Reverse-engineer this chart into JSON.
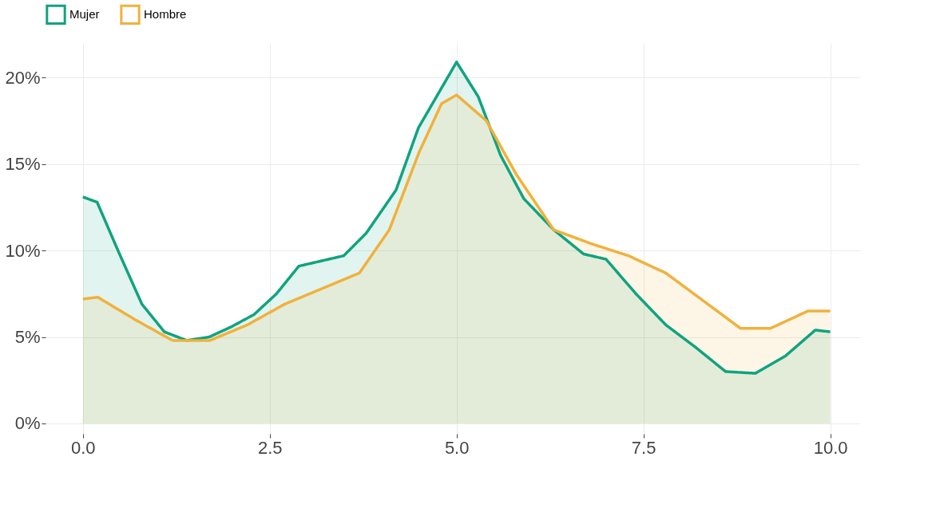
{
  "chart_data": {
    "type": "area",
    "xlim": [
      -0.5,
      10.4
    ],
    "ylim": [
      -0.6,
      22
    ],
    "xticks": [
      {
        "value": 0,
        "label": "0.0"
      },
      {
        "value": 2.5,
        "label": "2.5"
      },
      {
        "value": 5,
        "label": "5.0"
      },
      {
        "value": 7.5,
        "label": "7.5"
      },
      {
        "value": 10,
        "label": "10.0"
      }
    ],
    "yticks": [
      {
        "value": 0,
        "label": "0%"
      },
      {
        "value": 5,
        "label": "5%"
      },
      {
        "value": 10,
        "label": "10%"
      },
      {
        "value": 15,
        "label": "15%"
      },
      {
        "value": 20,
        "label": "20%"
      }
    ],
    "grid": true,
    "legend": "top",
    "line_style": "solid",
    "marker": "none",
    "series": [
      {
        "name": "Mujer",
        "color": "#10a37f",
        "x": [
          0,
          0.19,
          0.49,
          0.79,
          1.09,
          1.39,
          1.69,
          1.99,
          2.29,
          2.59,
          2.89,
          3.19,
          3.49,
          3.79,
          4.19,
          4.49,
          5.0,
          5.29,
          5.59,
          5.9,
          6.3,
          6.7,
          7.0,
          7.4,
          7.8,
          8.2,
          8.6,
          9.0,
          9.4,
          9.8,
          10
        ],
        "values": [
          13.1,
          12.8,
          9.8,
          6.9,
          5.3,
          4.8,
          5.0,
          5.6,
          6.3,
          7.5,
          9.1,
          9.4,
          9.7,
          11.0,
          13.5,
          17.1,
          20.9,
          18.9,
          15.5,
          13.0,
          11.2,
          9.8,
          9.5,
          7.5,
          5.7,
          4.4,
          3.0,
          2.9,
          3.9,
          5.4,
          5.3
        ]
      },
      {
        "name": "Hombre",
        "color": "#f0b13c",
        "x": [
          0,
          0.2,
          0.7,
          1.2,
          1.7,
          2.2,
          2.7,
          3.2,
          3.7,
          4.1,
          4.5,
          4.8,
          5.0,
          5.4,
          5.8,
          6.3,
          6.8,
          7.3,
          7.8,
          8.3,
          8.8,
          9.2,
          9.7,
          10
        ],
        "values": [
          7.2,
          7.3,
          6.0,
          4.8,
          4.8,
          5.7,
          6.9,
          7.8,
          8.7,
          11.2,
          15.7,
          18.5,
          19.0,
          17.5,
          14.4,
          11.2,
          10.4,
          9.7,
          8.7,
          7.1,
          5.5,
          5.5,
          6.5,
          6.5
        ]
      }
    ]
  }
}
